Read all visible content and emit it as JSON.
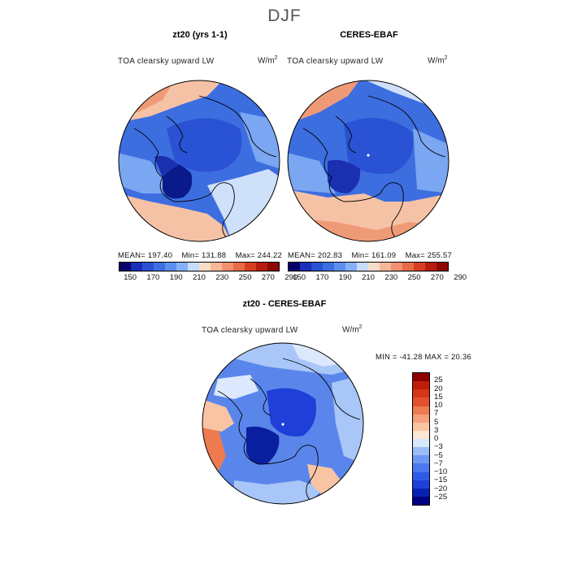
{
  "figure": {
    "season": "DJF"
  },
  "panels": [
    {
      "title": "zt20 (yrs 1-1)",
      "variable": "TOA clearsky upward LW",
      "units": "W/m",
      "units_exp": "2",
      "mean_text": "MEAN=  197.40",
      "min_text": "Min=  131.88",
      "max_text": "Max=  244.22"
    },
    {
      "title": "CERES-EBAF",
      "variable": "TOA clearsky upward LW",
      "units": "W/m",
      "units_exp": "2",
      "mean_text": "MEAN=  202.83",
      "min_text": "Min=  161.09",
      "max_text": "Max=  255.57"
    }
  ],
  "diff_panel": {
    "title": "zt20 - CERES-EBAF",
    "variable": "TOA clearsky upward LW",
    "units": "W/m",
    "units_exp": "2",
    "minmax_text": "MIN =  -41.28  MAX =   20.36"
  },
  "abs_colorbar": {
    "colors": [
      "#08016b",
      "#1a2fb8",
      "#2a52d4",
      "#3e6fe0",
      "#5c8ff0",
      "#86b0f8",
      "#c8dcfa",
      "#f8dcc8",
      "#f6b898",
      "#f29070",
      "#e86a48",
      "#d83e22",
      "#b81c10",
      "#8c0800"
    ],
    "labels": [
      "150",
      "170",
      "190",
      "210",
      "230",
      "250",
      "270",
      "290"
    ]
  },
  "diff_colorbar": {
    "colors": [
      "#000080",
      "#0a1fb4",
      "#1f3fd8",
      "#2f5ae6",
      "#4b78ee",
      "#6e98f4",
      "#9cbcf8",
      "#d8e8fc",
      "#fde6d2",
      "#f9c4a4",
      "#f5a07a",
      "#ee7a50",
      "#e5502c",
      "#d63618",
      "#c01e0c",
      "#8c0000"
    ],
    "labels": [
      "25",
      "20",
      "15",
      "10",
      "7",
      "5",
      "3",
      "0",
      "−3",
      "−5",
      "−7",
      "−10",
      "−15",
      "−20",
      "−25"
    ]
  },
  "map_colors": {
    "ocean_warm": "#ef9a76",
    "ocean_mid": "#f6c2a6",
    "light": "#cfe0fb",
    "blue_light": "#7aa6f2",
    "blue": "#3c6ee0",
    "blue_mid": "#2a52d4",
    "blue_dark": "#1a30b0",
    "blue_deep": "#0a1a8a",
    "diff_base": "#5a86ec",
    "diff_light": "#a9c6f8",
    "diff_pale": "#dbe8fd",
    "diff_red": "#ee7a50",
    "diff_dark": "#1f3fd8",
    "diff_deep": "#0a1fa0"
  }
}
